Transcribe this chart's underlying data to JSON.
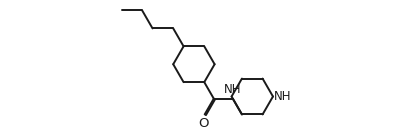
{
  "bg_color": "#ffffff",
  "line_color": "#1a1a1a",
  "line_width": 1.4,
  "figsize": [
    4.01,
    1.32
  ],
  "dpi": 100,
  "NH_label": "NH",
  "O_label": "O",
  "font_size": 8.5
}
